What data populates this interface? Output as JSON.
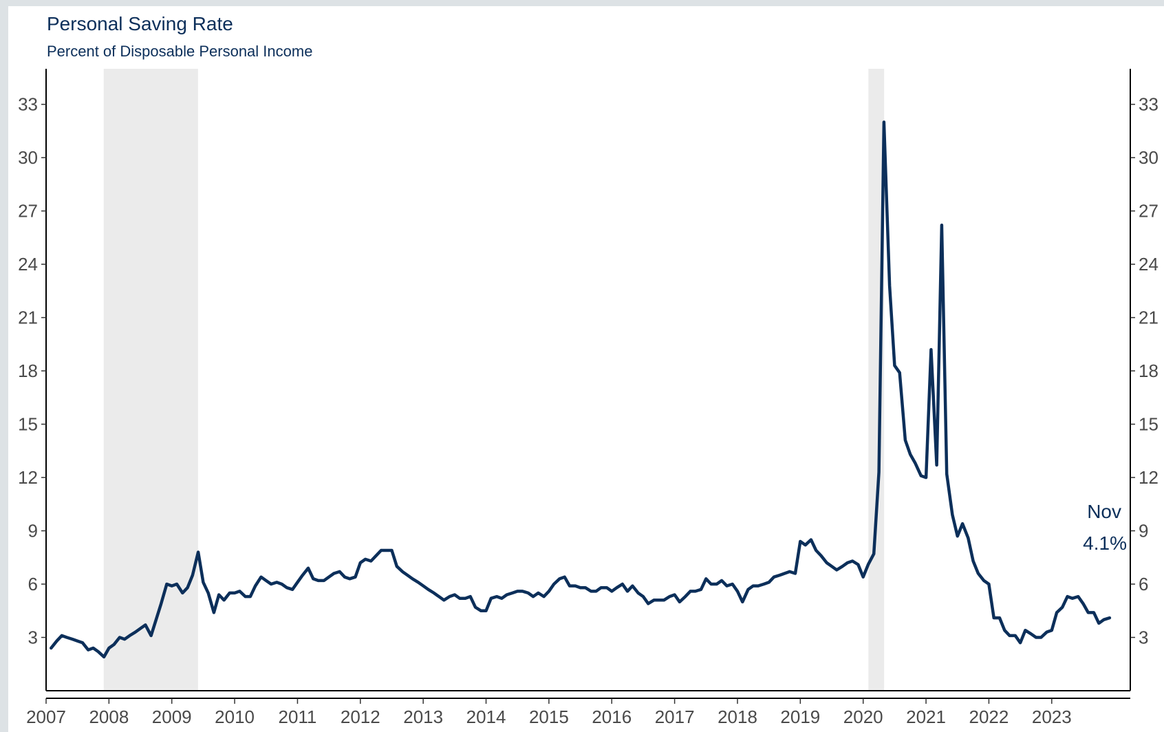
{
  "chart_data": {
    "type": "line",
    "title": "Personal Saving Rate",
    "subtitle": "Percent of Disposable Personal Income",
    "xlabel": "",
    "ylabel": "",
    "xlim": [
      2007.0,
      2024.25
    ],
    "ylim": [
      0,
      35
    ],
    "yticks": [
      3,
      6,
      9,
      12,
      15,
      18,
      21,
      24,
      27,
      30,
      33
    ],
    "xticks": [
      2007,
      2008,
      2009,
      2010,
      2011,
      2012,
      2013,
      2014,
      2015,
      2016,
      2017,
      2018,
      2019,
      2020,
      2021,
      2022,
      2023
    ],
    "grid": false,
    "legend": "none",
    "line_color": "#0c2f5a",
    "recession_color": "#ebebeb",
    "recessions": [
      [
        2007.917,
        2009.417
      ],
      [
        2020.083,
        2020.333
      ]
    ],
    "annotation": {
      "line1": "Nov",
      "line2": "4.1%"
    },
    "series": [
      {
        "values": [
          [
            2007.08,
            2.4
          ],
          [
            2007.17,
            2.8
          ],
          [
            2007.25,
            3.1
          ],
          [
            2007.33,
            3.0
          ],
          [
            2007.42,
            2.9
          ],
          [
            2007.5,
            2.8
          ],
          [
            2007.58,
            2.7
          ],
          [
            2007.67,
            2.3
          ],
          [
            2007.75,
            2.4
          ],
          [
            2007.83,
            2.2
          ],
          [
            2007.92,
            1.9
          ],
          [
            2008.0,
            2.4
          ],
          [
            2008.08,
            2.6
          ],
          [
            2008.17,
            3.0
          ],
          [
            2008.25,
            2.9
          ],
          [
            2008.33,
            3.1
          ],
          [
            2008.42,
            3.3
          ],
          [
            2008.5,
            3.5
          ],
          [
            2008.58,
            3.7
          ],
          [
            2008.67,
            3.1
          ],
          [
            2008.75,
            4.0
          ],
          [
            2008.83,
            4.9
          ],
          [
            2008.92,
            6.0
          ],
          [
            2009.0,
            5.9
          ],
          [
            2009.08,
            6.0
          ],
          [
            2009.17,
            5.5
          ],
          [
            2009.25,
            5.8
          ],
          [
            2009.33,
            6.5
          ],
          [
            2009.42,
            7.8
          ],
          [
            2009.5,
            6.1
          ],
          [
            2009.58,
            5.5
          ],
          [
            2009.67,
            4.4
          ],
          [
            2009.75,
            5.4
          ],
          [
            2009.83,
            5.1
          ],
          [
            2009.92,
            5.5
          ],
          [
            2010.0,
            5.5
          ],
          [
            2010.08,
            5.6
          ],
          [
            2010.17,
            5.3
          ],
          [
            2010.25,
            5.3
          ],
          [
            2010.33,
            5.9
          ],
          [
            2010.42,
            6.4
          ],
          [
            2010.5,
            6.2
          ],
          [
            2010.58,
            6.0
          ],
          [
            2010.67,
            6.1
          ],
          [
            2010.75,
            6.0
          ],
          [
            2010.83,
            5.8
          ],
          [
            2010.92,
            5.7
          ],
          [
            2011.0,
            6.1
          ],
          [
            2011.08,
            6.5
          ],
          [
            2011.17,
            6.9
          ],
          [
            2011.25,
            6.3
          ],
          [
            2011.33,
            6.2
          ],
          [
            2011.42,
            6.2
          ],
          [
            2011.5,
            6.4
          ],
          [
            2011.58,
            6.6
          ],
          [
            2011.67,
            6.7
          ],
          [
            2011.75,
            6.4
          ],
          [
            2011.83,
            6.3
          ],
          [
            2011.92,
            6.4
          ],
          [
            2012.0,
            7.2
          ],
          [
            2012.08,
            7.4
          ],
          [
            2012.17,
            7.3
          ],
          [
            2012.25,
            7.6
          ],
          [
            2012.33,
            7.9
          ],
          [
            2012.42,
            7.9
          ],
          [
            2012.5,
            7.9
          ],
          [
            2012.58,
            7.0
          ],
          [
            2012.67,
            6.7
          ],
          [
            2012.75,
            6.5
          ],
          [
            2012.83,
            6.3
          ],
          [
            2012.92,
            6.1
          ],
          [
            2013.0,
            5.9
          ],
          [
            2013.08,
            5.7
          ],
          [
            2013.17,
            5.5
          ],
          [
            2013.25,
            5.3
          ],
          [
            2013.33,
            5.1
          ],
          [
            2013.42,
            5.3
          ],
          [
            2013.5,
            5.4
          ],
          [
            2013.58,
            5.2
          ],
          [
            2013.67,
            5.2
          ],
          [
            2013.75,
            5.3
          ],
          [
            2013.83,
            4.7
          ],
          [
            2013.92,
            4.5
          ],
          [
            2014.0,
            4.5
          ],
          [
            2014.08,
            5.2
          ],
          [
            2014.17,
            5.3
          ],
          [
            2014.25,
            5.2
          ],
          [
            2014.33,
            5.4
          ],
          [
            2014.42,
            5.5
          ],
          [
            2014.5,
            5.6
          ],
          [
            2014.58,
            5.6
          ],
          [
            2014.67,
            5.5
          ],
          [
            2014.75,
            5.3
          ],
          [
            2014.83,
            5.5
          ],
          [
            2014.92,
            5.3
          ],
          [
            2015.0,
            5.6
          ],
          [
            2015.08,
            6.0
          ],
          [
            2015.17,
            6.3
          ],
          [
            2015.25,
            6.4
          ],
          [
            2015.33,
            5.9
          ],
          [
            2015.42,
            5.9
          ],
          [
            2015.5,
            5.8
          ],
          [
            2015.58,
            5.8
          ],
          [
            2015.67,
            5.6
          ],
          [
            2015.75,
            5.6
          ],
          [
            2015.83,
            5.8
          ],
          [
            2015.92,
            5.8
          ],
          [
            2016.0,
            5.6
          ],
          [
            2016.08,
            5.8
          ],
          [
            2016.17,
            6.0
          ],
          [
            2016.25,
            5.6
          ],
          [
            2016.33,
            5.9
          ],
          [
            2016.42,
            5.5
          ],
          [
            2016.5,
            5.3
          ],
          [
            2016.58,
            4.9
          ],
          [
            2016.67,
            5.1
          ],
          [
            2016.75,
            5.1
          ],
          [
            2016.83,
            5.1
          ],
          [
            2016.92,
            5.3
          ],
          [
            2017.0,
            5.4
          ],
          [
            2017.08,
            5.0
          ],
          [
            2017.17,
            5.3
          ],
          [
            2017.25,
            5.6
          ],
          [
            2017.33,
            5.6
          ],
          [
            2017.42,
            5.7
          ],
          [
            2017.5,
            6.3
          ],
          [
            2017.58,
            6.0
          ],
          [
            2017.67,
            6.0
          ],
          [
            2017.75,
            6.2
          ],
          [
            2017.83,
            5.9
          ],
          [
            2017.92,
            6.0
          ],
          [
            2018.0,
            5.6
          ],
          [
            2018.08,
            5.0
          ],
          [
            2018.17,
            5.7
          ],
          [
            2018.25,
            5.9
          ],
          [
            2018.33,
            5.9
          ],
          [
            2018.42,
            6.0
          ],
          [
            2018.5,
            6.1
          ],
          [
            2018.58,
            6.4
          ],
          [
            2018.67,
            6.5
          ],
          [
            2018.75,
            6.6
          ],
          [
            2018.83,
            6.7
          ],
          [
            2018.92,
            6.6
          ],
          [
            2019.0,
            8.4
          ],
          [
            2019.08,
            8.2
          ],
          [
            2019.17,
            8.5
          ],
          [
            2019.25,
            7.9
          ],
          [
            2019.33,
            7.6
          ],
          [
            2019.42,
            7.2
          ],
          [
            2019.5,
            7.0
          ],
          [
            2019.58,
            6.8
          ],
          [
            2019.67,
            7.0
          ],
          [
            2019.75,
            7.2
          ],
          [
            2019.83,
            7.3
          ],
          [
            2019.92,
            7.1
          ],
          [
            2020.0,
            6.4
          ],
          [
            2020.08,
            7.1
          ],
          [
            2020.17,
            7.7
          ],
          [
            2020.25,
            12.3
          ],
          [
            2020.33,
            32.0
          ],
          [
            2020.42,
            22.8
          ],
          [
            2020.5,
            18.3
          ],
          [
            2020.58,
            17.9
          ],
          [
            2020.67,
            14.1
          ],
          [
            2020.75,
            13.3
          ],
          [
            2020.83,
            12.8
          ],
          [
            2020.92,
            12.1
          ],
          [
            2021.0,
            12.0
          ],
          [
            2021.08,
            19.2
          ],
          [
            2021.17,
            12.7
          ],
          [
            2021.25,
            26.2
          ],
          [
            2021.33,
            12.2
          ],
          [
            2021.42,
            9.9
          ],
          [
            2021.5,
            8.7
          ],
          [
            2021.58,
            9.4
          ],
          [
            2021.67,
            8.6
          ],
          [
            2021.75,
            7.3
          ],
          [
            2021.83,
            6.6
          ],
          [
            2021.92,
            6.2
          ],
          [
            2022.0,
            6.0
          ],
          [
            2022.08,
            4.1
          ],
          [
            2022.17,
            4.1
          ],
          [
            2022.25,
            3.4
          ],
          [
            2022.33,
            3.1
          ],
          [
            2022.42,
            3.1
          ],
          [
            2022.5,
            2.7
          ],
          [
            2022.58,
            3.4
          ],
          [
            2022.67,
            3.2
          ],
          [
            2022.75,
            3.0
          ],
          [
            2022.83,
            3.0
          ],
          [
            2022.92,
            3.3
          ],
          [
            2023.0,
            3.4
          ],
          [
            2023.08,
            4.4
          ],
          [
            2023.17,
            4.7
          ],
          [
            2023.25,
            5.3
          ],
          [
            2023.33,
            5.2
          ],
          [
            2023.42,
            5.3
          ],
          [
            2023.5,
            4.9
          ],
          [
            2023.58,
            4.4
          ],
          [
            2023.67,
            4.4
          ],
          [
            2023.75,
            3.8
          ],
          [
            2023.83,
            4.0
          ],
          [
            2023.92,
            4.1
          ]
        ]
      }
    ]
  }
}
